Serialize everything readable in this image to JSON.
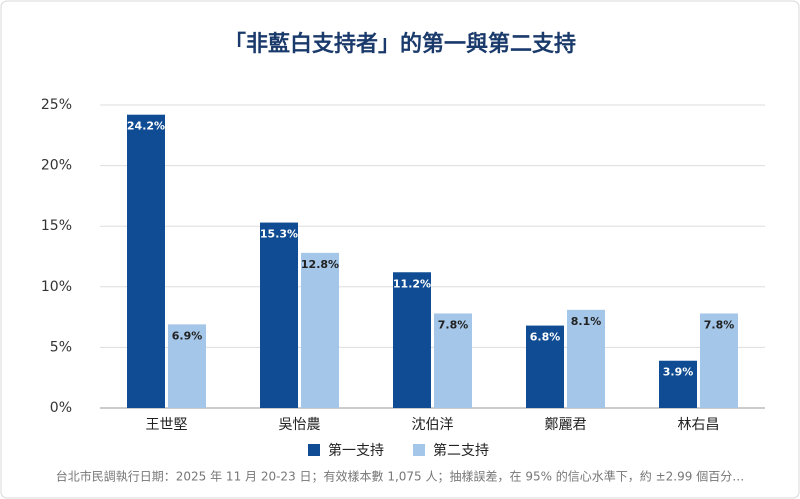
{
  "chart_data": {
    "type": "bar",
    "title": "「非藍白支持者」的第一與第二支持",
    "categories": [
      "王世堅",
      "吳怡農",
      "沈伯洋",
      "鄭麗君",
      "林右昌"
    ],
    "series": [
      {
        "name": "第一支持",
        "color": "#0f4c93",
        "values": [
          24.2,
          15.3,
          11.2,
          6.8,
          3.9
        ],
        "value_labels": [
          "24.2%",
          "15.3%",
          "11.2%",
          "6.8%",
          "3.9%"
        ]
      },
      {
        "name": "第二支持",
        "color": "#a4c6e8",
        "values": [
          6.9,
          12.8,
          7.8,
          8.1,
          7.8
        ],
        "value_labels": [
          "6.9%",
          "12.8%",
          "7.8%",
          "8.1%",
          "7.8%"
        ]
      }
    ],
    "ylim": [
      0,
      25
    ],
    "yticks": [
      {
        "value": 0,
        "label": "0%"
      },
      {
        "value": 5,
        "label": "5%"
      },
      {
        "value": 10,
        "label": "10%"
      },
      {
        "value": 15,
        "label": "15%"
      },
      {
        "value": 20,
        "label": "20%"
      },
      {
        "value": 25,
        "label": "25%"
      }
    ],
    "grid": true,
    "legend": "bottom",
    "note": "台北市民調執行日期：2025 年 11 月 20-23 日；有效樣本數 1,075 人；抽樣誤差，在 95% 的信心水準下，約 ±2.99 個百分…"
  }
}
